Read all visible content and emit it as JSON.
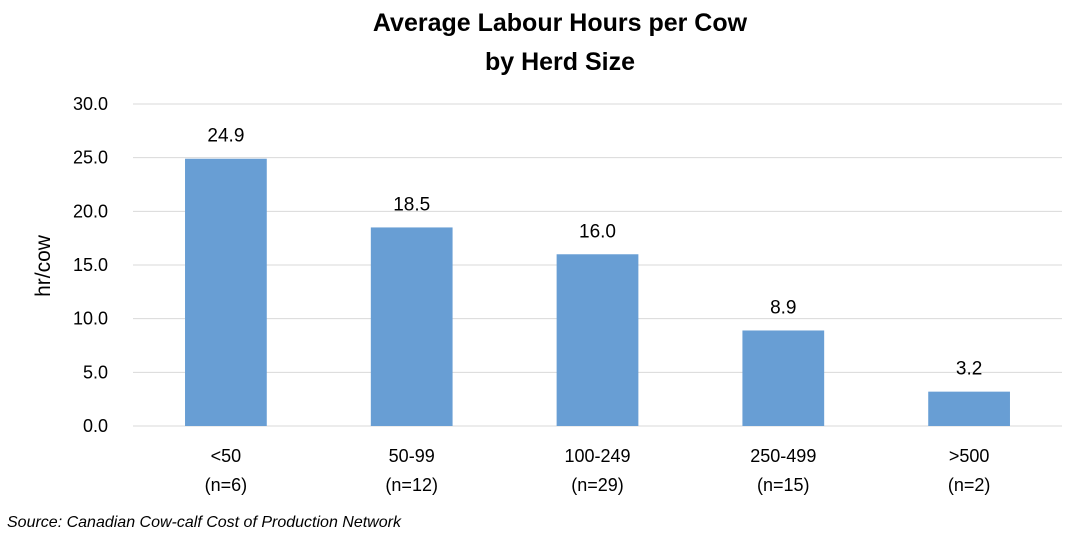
{
  "chart_data": {
    "type": "bar",
    "title_lines": [
      "Average Labour Hours per Cow",
      "by Herd Size"
    ],
    "xlabel": "",
    "ylabel": "hr/cow",
    "categories": [
      {
        "name": "<50",
        "n": "(n=6)"
      },
      {
        "name": "50-99",
        "n": "(n=12)"
      },
      {
        "name": "100-249",
        "n": "(n=29)"
      },
      {
        "name": "250-499",
        "n": "(n=15)"
      },
      {
        "name": ">500",
        "n": "(n=2)"
      }
    ],
    "values": [
      24.9,
      18.5,
      16.0,
      8.9,
      3.2
    ],
    "value_labels": [
      "24.9",
      "18.5",
      "16.0",
      "8.9",
      "3.2"
    ],
    "ylim": [
      0,
      30
    ],
    "yticks": [
      "0.0",
      "5.0",
      "10.0",
      "15.0",
      "20.0",
      "25.0",
      "30.0"
    ],
    "grid": true,
    "bar_color": "#689ed4",
    "source": "Source: Canadian Cow-calf Cost of Production Network"
  }
}
